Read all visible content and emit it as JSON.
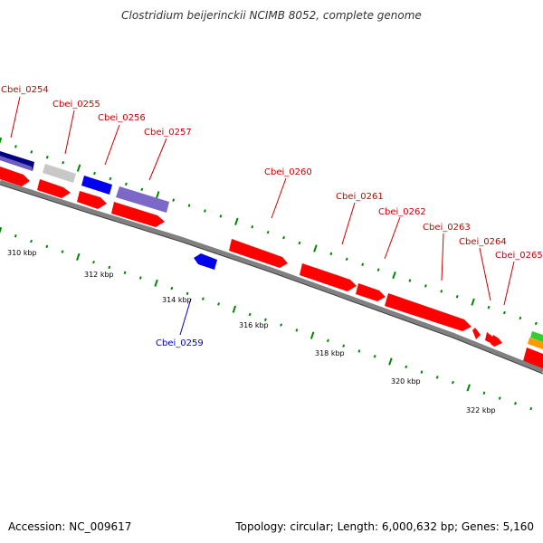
{
  "title": "Clostridium beijerinckii NCIMB 8052, complete genome",
  "footer": {
    "accession": "Accession: NC_009617",
    "summary": "Topology: circular; Length: 6,000,632 bp; Genes: 5,160"
  },
  "colors": {
    "forward_gene": "#ff0000",
    "reverse_gene": "#0000ff",
    "label_red": "#cc0000",
    "label_blue": "#0000cc",
    "backbone": "#808080",
    "tick": "#008800",
    "navy_gene": "#000080",
    "purple_gene": "#7b68c8",
    "grey_gene": "#c8c8c8",
    "green_gene": "#33cc33",
    "orange_gene": "#ff9900"
  },
  "scale_labels": [
    "310 kbp",
    "312 kbp",
    "314 kbp",
    "316 kbp",
    "318 kbp",
    "320 kbp",
    "322 kbp"
  ],
  "gene_labels": [
    {
      "name": "Cbei_0254",
      "strand": "+"
    },
    {
      "name": "Cbei_0255",
      "strand": "+"
    },
    {
      "name": "Cbei_0256",
      "strand": "+"
    },
    {
      "name": "Cbei_0257",
      "strand": "+"
    },
    {
      "name": "Cbei_0260",
      "strand": "+"
    },
    {
      "name": "Cbei_0261",
      "strand": "+"
    },
    {
      "name": "Cbei_0262",
      "strand": "+"
    },
    {
      "name": "Cbei_0263",
      "strand": "+"
    },
    {
      "name": "Cbei_0264",
      "strand": "+"
    },
    {
      "name": "Cbei_0265",
      "strand": "+"
    },
    {
      "name": "Cbei_0259",
      "strand": "-"
    }
  ]
}
